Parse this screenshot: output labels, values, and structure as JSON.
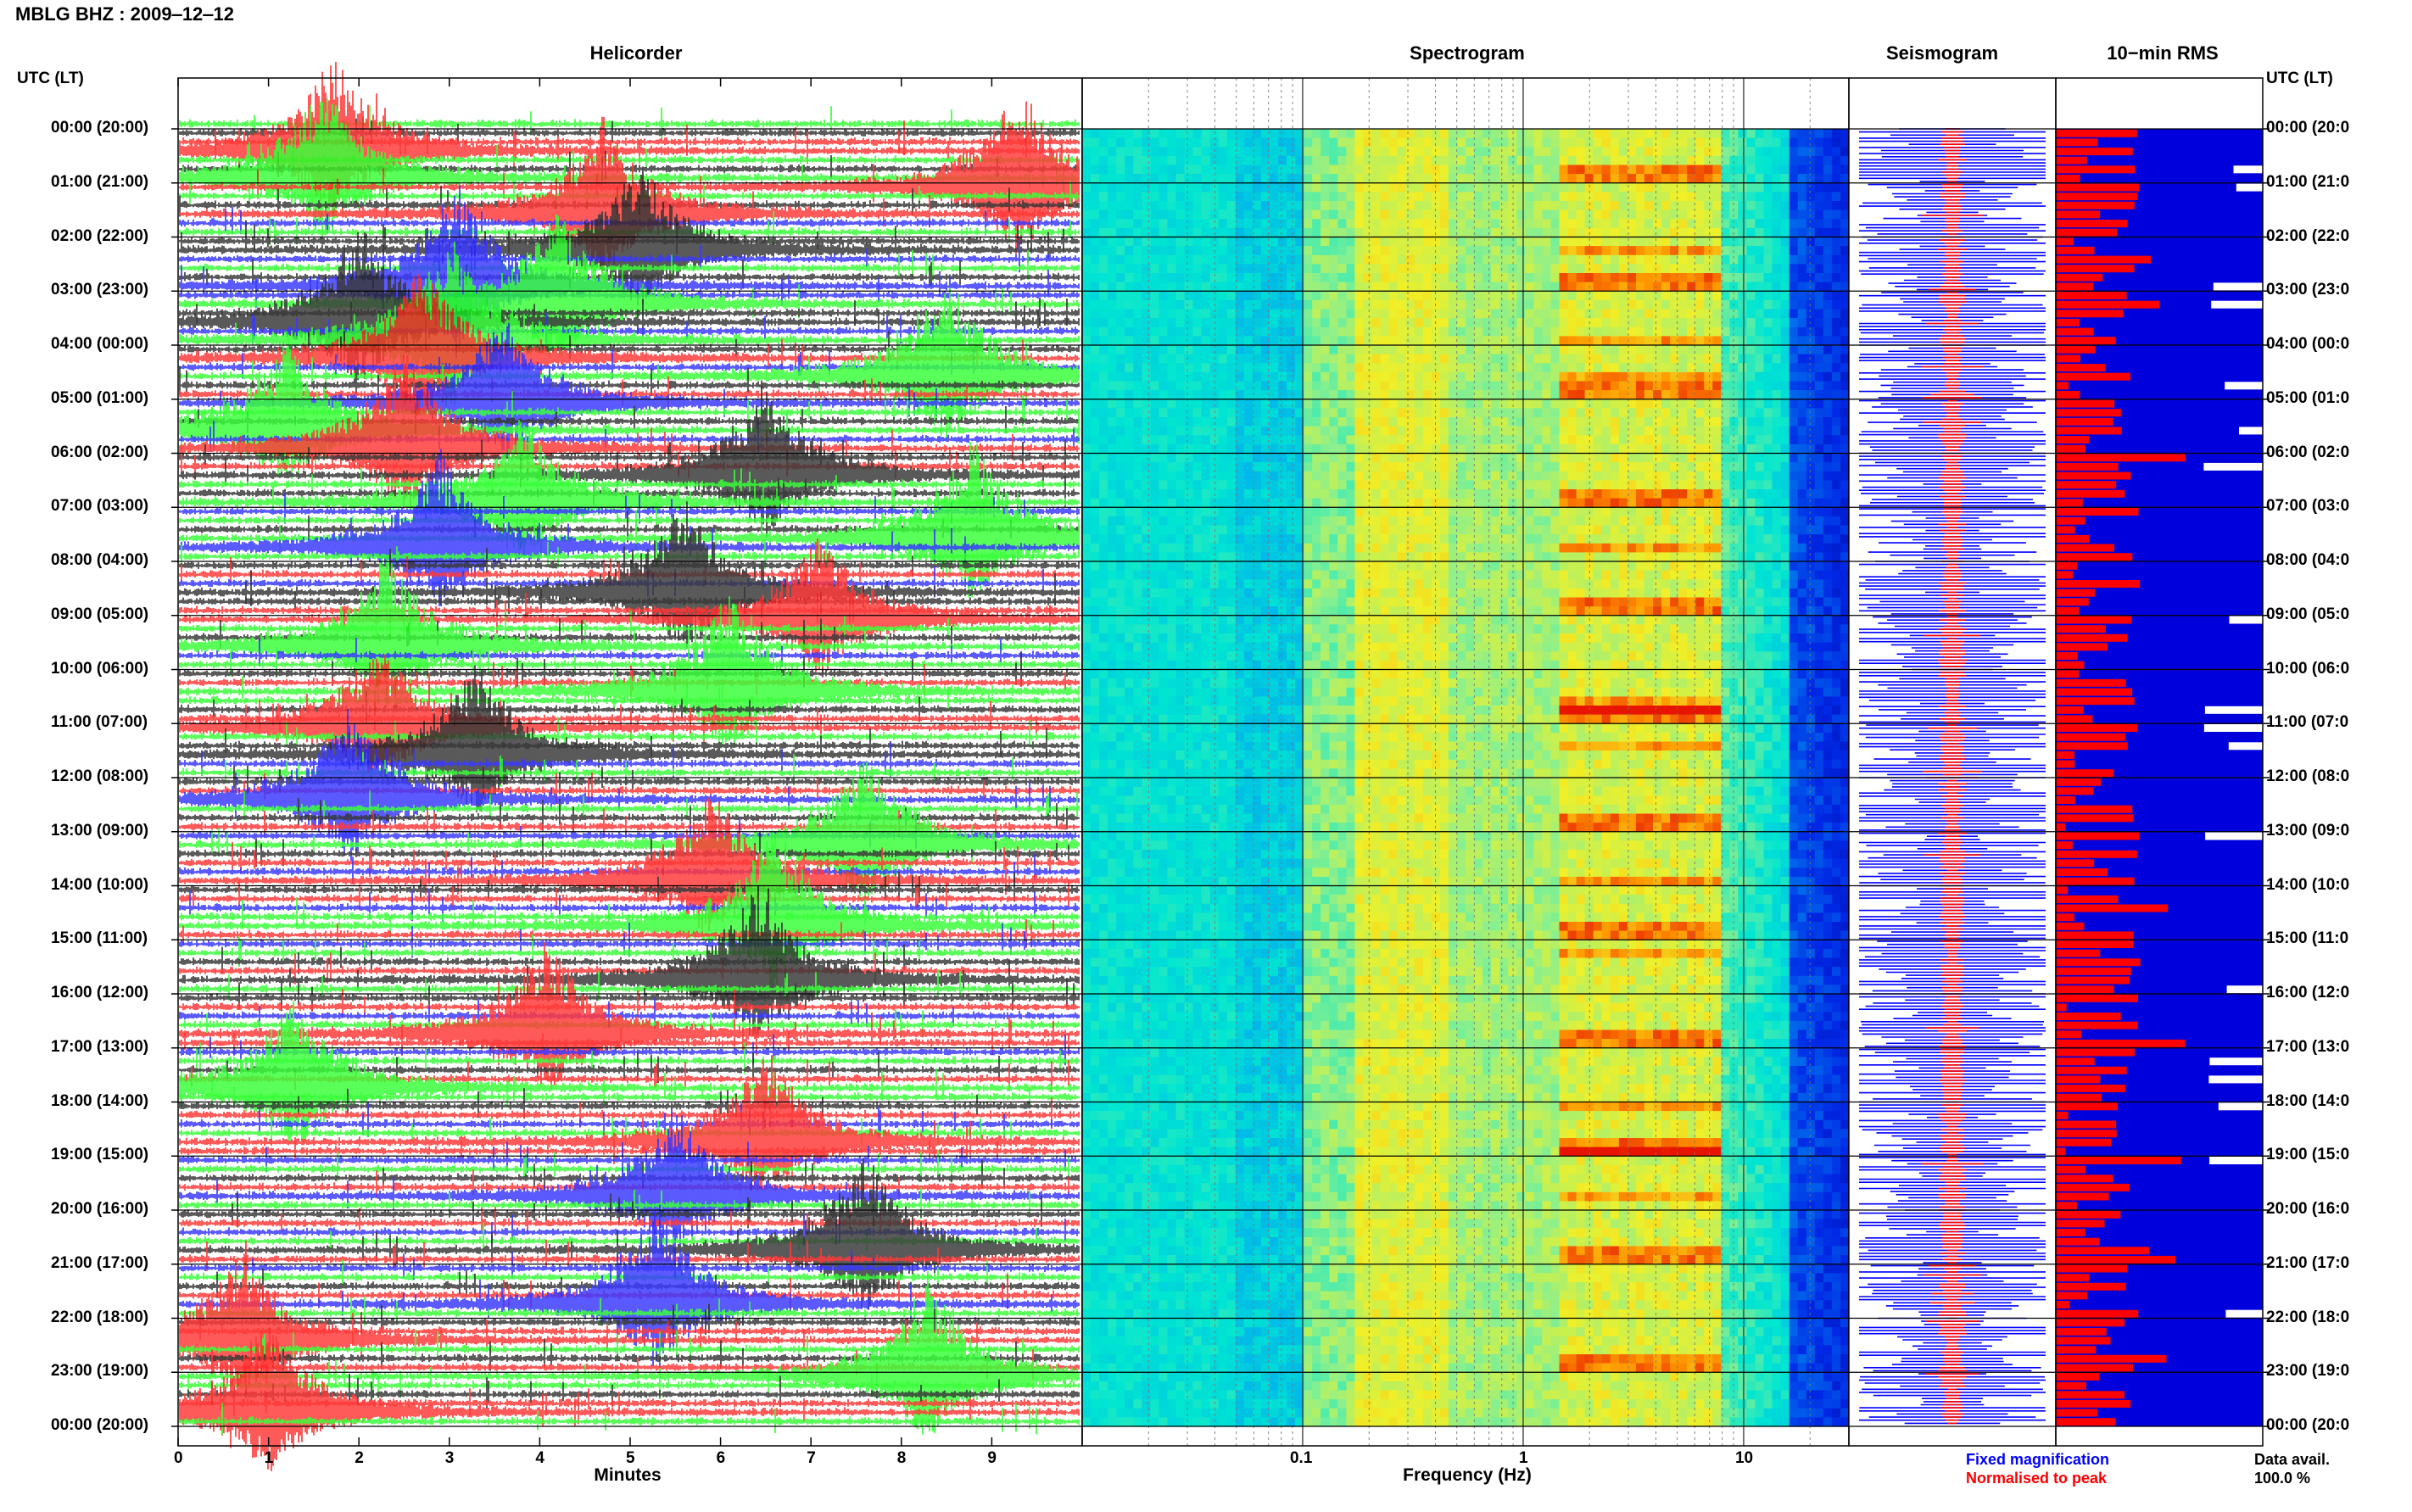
{
  "header": {
    "title": "MBLG BHZ : 2009‒12‒12"
  },
  "panels": {
    "helicorder": "Helicorder",
    "spectrogram": "Spectrogram",
    "seismogram": "Seismogram",
    "rms": "10−min RMS"
  },
  "axes": {
    "left_head": "UTC (LT)",
    "right_head": "UTC (LT)",
    "time_labels": [
      "00:00 (20:00)",
      "01:00 (21:00)",
      "02:00 (22:00)",
      "03:00 (23:00)",
      "04:00 (00:00)",
      "05:00 (01:00)",
      "06:00 (02:00)",
      "07:00 (03:00)",
      "08:00 (04:00)",
      "09:00 (05:00)",
      "10:00 (06:00)",
      "11:00 (07:00)",
      "12:00 (08:00)",
      "13:00 (09:00)",
      "14:00 (10:00)",
      "15:00 (11:00)",
      "16:00 (12:00)",
      "17:00 (13:00)",
      "18:00 (14:00)",
      "19:00 (15:00)",
      "20:00 (16:00)",
      "21:00 (17:00)",
      "22:00 (18:00)",
      "23:00 (19:00)",
      "00:00 (20:00)"
    ],
    "right_time_labels": [
      "00:00 (20:0",
      "01:00 (21:0",
      "02:00 (22:0",
      "03:00 (23:0",
      "04:00 (00:0",
      "05:00 (01:0",
      "06:00 (02:0",
      "07:00 (03:0",
      "08:00 (04:0",
      "09:00 (05:0",
      "10:00 (06:0",
      "11:00 (07:0",
      "12:00 (08:0",
      "13:00 (09:0",
      "14:00 (10:0",
      "15:00 (11:0",
      "16:00 (12:0",
      "17:00 (13:0",
      "18:00 (14:0",
      "19:00 (15:0",
      "20:00 (16:0",
      "21:00 (17:0",
      "22:00 (18:0",
      "23:00 (19:0",
      "00:00 (20:0"
    ],
    "minutes_ticks": [
      "0",
      "1",
      "2",
      "3",
      "4",
      "5",
      "6",
      "7",
      "8",
      "9"
    ],
    "minutes_label": "Minutes",
    "freq_ticks": [
      "0.1",
      "1",
      "10"
    ],
    "freq_label": "Frequency (Hz)"
  },
  "legend": {
    "fixed": "Fixed magnification",
    "normalised": "Normalised to peak",
    "avail_label": "Data avail.",
    "avail_value": "100.0 %"
  },
  "colors": {
    "trace_cycle": [
      "#000000",
      "#ff0000",
      "#0000ff",
      "#00ff00"
    ],
    "fixed": "#0000ff",
    "normalised": "#ff0000",
    "rms_bg": "#0000dd"
  },
  "chart_data": [
    {
      "type": "helicorder",
      "title": "Helicorder",
      "xlabel": "Minutes",
      "xlim": [
        0,
        10
      ],
      "rows_per_hour": 6,
      "hours": 24,
      "event_rows": [
        {
          "row": 2,
          "min": 1.7,
          "amp": 1.6,
          "color": "#ff0000"
        },
        {
          "row": 5,
          "min": 1.6,
          "amp": 1.5,
          "color": "#00ff00"
        },
        {
          "row": 6,
          "min": 9.3,
          "amp": 1.7,
          "color": "#ff0000"
        },
        {
          "row": 9,
          "min": 4.7,
          "amp": 1.5,
          "color": "#ff0000"
        },
        {
          "row": 13,
          "min": 5.1,
          "amp": 1.4,
          "color": "#000000"
        },
        {
          "row": 17,
          "min": 3.1,
          "amp": 1.6,
          "color": "#0000ff"
        },
        {
          "row": 19,
          "min": 4.2,
          "amp": 1.5,
          "color": "#00ff00"
        },
        {
          "row": 21,
          "min": 2.0,
          "amp": 1.6,
          "color": "#000000"
        },
        {
          "row": 23,
          "min": 3.0,
          "amp": 1.8,
          "color": "#00ff00"
        },
        {
          "row": 25,
          "min": 2.7,
          "amp": 1.5,
          "color": "#ff0000"
        },
        {
          "row": 27,
          "min": 8.5,
          "amp": 1.6,
          "color": "#00ff00"
        },
        {
          "row": 30,
          "min": 3.6,
          "amp": 1.4,
          "color": "#0000ff"
        },
        {
          "row": 33,
          "min": 1.2,
          "amp": 1.5,
          "color": "#00ff00"
        },
        {
          "row": 35,
          "min": 2.5,
          "amp": 1.6,
          "color": "#ff0000"
        },
        {
          "row": 38,
          "min": 6.5,
          "amp": 1.5,
          "color": "#000000"
        },
        {
          "row": 41,
          "min": 3.8,
          "amp": 1.4,
          "color": "#00ff00"
        },
        {
          "row": 45,
          "min": 8.8,
          "amp": 1.6,
          "color": "#00ff00"
        },
        {
          "row": 46,
          "min": 2.9,
          "amp": 1.5,
          "color": "#0000ff"
        },
        {
          "row": 51,
          "min": 5.6,
          "amp": 1.5,
          "color": "#000000"
        },
        {
          "row": 54,
          "min": 7.1,
          "amp": 1.4,
          "color": "#ff0000"
        },
        {
          "row": 57,
          "min": 2.3,
          "amp": 1.5,
          "color": "#00ff00"
        },
        {
          "row": 62,
          "min": 6.1,
          "amp": 1.6,
          "color": "#00ff00"
        },
        {
          "row": 66,
          "min": 2.2,
          "amp": 1.4,
          "color": "#ff0000"
        },
        {
          "row": 69,
          "min": 3.3,
          "amp": 1.5,
          "color": "#000000"
        },
        {
          "row": 74,
          "min": 1.9,
          "amp": 1.5,
          "color": "#0000ff"
        },
        {
          "row": 79,
          "min": 7.6,
          "amp": 1.5,
          "color": "#00ff00"
        },
        {
          "row": 83,
          "min": 5.9,
          "amp": 1.4,
          "color": "#ff0000"
        },
        {
          "row": 88,
          "min": 6.6,
          "amp": 1.6,
          "color": "#00ff00"
        },
        {
          "row": 94,
          "min": 6.4,
          "amp": 1.5,
          "color": "#000000"
        },
        {
          "row": 100,
          "min": 4.1,
          "amp": 1.5,
          "color": "#ff0000"
        },
        {
          "row": 106,
          "min": 1.3,
          "amp": 1.6,
          "color": "#00ff00"
        },
        {
          "row": 112,
          "min": 6.5,
          "amp": 1.5,
          "color": "#ff0000"
        },
        {
          "row": 118,
          "min": 5.5,
          "amp": 1.4,
          "color": "#0000ff"
        },
        {
          "row": 124,
          "min": 7.6,
          "amp": 1.6,
          "color": "#000000"
        },
        {
          "row": 130,
          "min": 5.3,
          "amp": 1.6,
          "color": "#0000ff"
        },
        {
          "row": 134,
          "min": 0.7,
          "amp": 1.4,
          "color": "#ff0000"
        },
        {
          "row": 138,
          "min": 8.3,
          "amp": 1.6,
          "color": "#00ff00"
        },
        {
          "row": 142,
          "min": 1.0,
          "amp": 1.5,
          "color": "#ff0000"
        }
      ]
    },
    {
      "type": "heatmap",
      "title": "Spectrogram",
      "xlabel": "Frequency (Hz)",
      "xscale": "log",
      "xlim": [
        0.01,
        30
      ],
      "peak_band_hz": [
        1.5,
        8
      ],
      "y": "time UTC 00:00 to 24:00"
    },
    {
      "type": "line",
      "title": "Seismogram",
      "series": [
        {
          "name": "Fixed magnification",
          "color": "#0000ff"
        },
        {
          "name": "Normalised to peak",
          "color": "#ff0000"
        }
      ]
    },
    {
      "type": "bar",
      "title": "10−min RMS",
      "orientation": "horizontal",
      "bins": 144,
      "data_availability_percent": 100.0
    }
  ]
}
